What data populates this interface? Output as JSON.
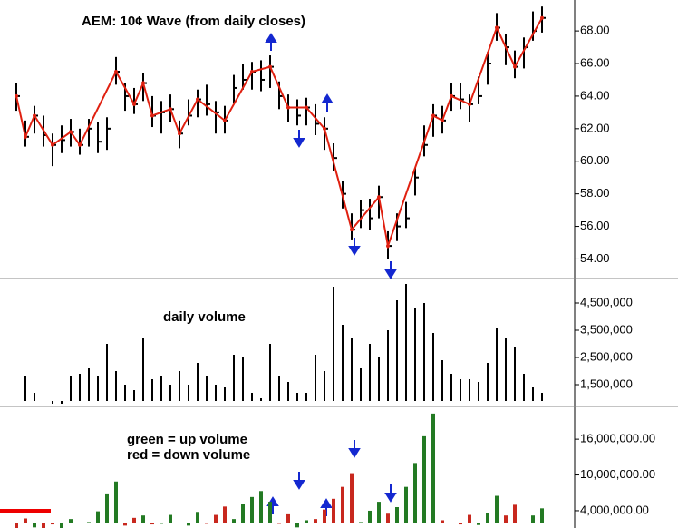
{
  "chart_data": [
    {
      "type": "hlc",
      "title": "AEM:  10¢ Wave (from daily closes)",
      "color": "#000000",
      "wave_color": "#e02010",
      "close": [
        64,
        61.5,
        62.8,
        61.6,
        61,
        61.3,
        61.8,
        61,
        62,
        61.2,
        62,
        65.5,
        64,
        63.5,
        64.8,
        62.8,
        63,
        63.2,
        61.7,
        62.8,
        63.8,
        63.5,
        63,
        62.5,
        64.5,
        65,
        65.5,
        65,
        65.8,
        64,
        63.3,
        62.8,
        63.3,
        62.3,
        62,
        60.2,
        58,
        55.8,
        57,
        56.5,
        57.8,
        54.8,
        56,
        56.5,
        59,
        61,
        62.8,
        62.5,
        64,
        63.8,
        63.5,
        64,
        66,
        68.2,
        67,
        65.8,
        67,
        68,
        68.8
      ],
      "high": [
        64.8,
        62.5,
        63.4,
        62.8,
        61.7,
        62.2,
        62.6,
        62.0,
        62.6,
        62.4,
        62.7,
        66.4,
        64.8,
        64.5,
        65.4,
        64.0,
        63.7,
        64.1,
        62.5,
        63.8,
        64.4,
        64.7,
        63.7,
        63.4,
        65.3,
        66.0,
        66.1,
        66.2,
        66.5,
        64.9,
        64.1,
        63.8,
        63.9,
        63.5,
        62.7,
        61.1,
        58.8,
        56.8,
        57.6,
        57.7,
        58.5,
        55.7,
        56.8,
        57.5,
        59.6,
        62.2,
        63.5,
        63.4,
        64.8,
        64.8,
        64.1,
        65.2,
        66.7,
        69.1,
        67.8,
        66.8,
        67.6,
        69.2,
        69.5
      ],
      "low": [
        63.1,
        60.9,
        61.7,
        60.9,
        59.7,
        60.5,
        60.9,
        60.4,
        60.9,
        60.5,
        60.7,
        64.7,
        63.1,
        62.9,
        63.7,
        62.1,
        61.7,
        62.4,
        60.8,
        62.2,
        62.7,
        62.8,
        61.7,
        61.7,
        63.6,
        64.4,
        64.4,
        64.3,
        64.5,
        63.2,
        62.4,
        62.2,
        62.2,
        61.6,
        60.7,
        59.4,
        57.1,
        55.2,
        55.9,
        55.8,
        56.5,
        54.0,
        55.1,
        55.9,
        57.9,
        60.3,
        61.5,
        61.7,
        63.1,
        63.2,
        62.4,
        63.5,
        64.7,
        67.4,
        65.9,
        65.1,
        65.7,
        67.4,
        67.9
      ],
      "wave_points": [
        0,
        1,
        2,
        4,
        6,
        7,
        11,
        13,
        14,
        15,
        17,
        18,
        20,
        23,
        26,
        28,
        30,
        32,
        34,
        37,
        40,
        41,
        46,
        47,
        48,
        50,
        53,
        55,
        58
      ],
      "ylim": [
        52.8,
        69.9
      ],
      "yticks": [
        {
          "value": 54,
          "label": "54.00"
        },
        {
          "value": 56,
          "label": "56.00"
        },
        {
          "value": 58,
          "label": "58.00"
        },
        {
          "value": 60,
          "label": "60.00"
        },
        {
          "value": 62,
          "label": "62.00"
        },
        {
          "value": 64,
          "label": "64.00"
        },
        {
          "value": 66,
          "label": "66.00"
        },
        {
          "value": 68,
          "label": "68.00"
        }
      ]
    },
    {
      "type": "bar",
      "annotation": "daily volume",
      "color": "#000000",
      "values": [
        900000,
        1800000,
        1200000,
        900000,
        800000,
        800000,
        1800000,
        1900000,
        2100000,
        1800000,
        3000000,
        2000000,
        1500000,
        1300000,
        3200000,
        1700000,
        1800000,
        1500000,
        2000000,
        1500000,
        2300000,
        1800000,
        1500000,
        1400000,
        2600000,
        2500000,
        1200000,
        1000000,
        3000000,
        1800000,
        1600000,
        1200000,
        1200000,
        2600000,
        2000000,
        5100000,
        3700000,
        3200000,
        2100000,
        3000000,
        2500000,
        3500000,
        4600000,
        5200000,
        4300000,
        4500000,
        3400000,
        2400000,
        1900000,
        1700000,
        1700000,
        1600000,
        2300000,
        3600000,
        3200000,
        2900000,
        1900000,
        1400000,
        1200000
      ],
      "ylim": [
        700000,
        5400000
      ],
      "yticks": [
        {
          "value": 1500000,
          "label": "1,500,000"
        },
        {
          "value": 2500000,
          "label": "2,500,000"
        },
        {
          "value": 3500000,
          "label": "3,500,000"
        },
        {
          "value": 4500000,
          "label": "4,500,000"
        }
      ]
    },
    {
      "type": "bar",
      "annotations": [
        "green = up volume",
        "red = down volume"
      ],
      "values": [
        900000,
        2700000,
        1200000,
        900000,
        1700000,
        800000,
        2600000,
        1900000,
        2100000,
        3900000,
        6900000,
        8900000,
        1500000,
        2800000,
        3200000,
        1700000,
        1800000,
        3300000,
        2000000,
        1500000,
        3800000,
        1800000,
        3300000,
        4700000,
        2600000,
        5100000,
        6300000,
        7300000,
        5500000,
        1800000,
        3400000,
        1200000,
        2400000,
        2600000,
        4200000,
        6000000,
        8000000,
        10300000,
        2100000,
        4000000,
        5500000,
        3500000,
        4600000,
        8000000,
        12000000,
        16500000,
        20300000,
        2400000,
        1900000,
        1700000,
        3300000,
        1600000,
        3600000,
        6500000,
        3200000,
        5000000,
        1900000,
        3200000,
        4400000
      ],
      "colors": [
        "#c8281e",
        "#c8281e",
        "#237a23",
        "#c8281e",
        "#c8281e",
        "#237a23",
        "#237a23",
        "#c8281e",
        "#237a23",
        "#237a23",
        "#237a23",
        "#237a23",
        "#c8281e",
        "#c8281e",
        "#237a23",
        "#c8281e",
        "#237a23",
        "#237a23",
        "#c8281e",
        "#237a23",
        "#237a23",
        "#c8281e",
        "#c8281e",
        "#c8281e",
        "#237a23",
        "#237a23",
        "#237a23",
        "#237a23",
        "#237a23",
        "#c8281e",
        "#c8281e",
        "#237a23",
        "#237a23",
        "#c8281e",
        "#c8281e",
        "#c8281e",
        "#c8281e",
        "#c8281e",
        "#237a23",
        "#237a23",
        "#237a23",
        "#c8281e",
        "#237a23",
        "#237a23",
        "#237a23",
        "#237a23",
        "#237a23",
        "#c8281e",
        "#237a23",
        "#c8281e",
        "#c8281e",
        "#237a23",
        "#237a23",
        "#237a23",
        "#c8281e",
        "#c8281e",
        "#237a23",
        "#237a23",
        "#237a23"
      ],
      "ylim": [
        1100000,
        21500000
      ],
      "yticks": [
        {
          "value": 4000000,
          "label": "4,000,000.00"
        },
        {
          "value": 10000000,
          "label": "10,000,000.00"
        },
        {
          "value": 16000000,
          "label": "16,000,000.00"
        }
      ]
    }
  ]
}
